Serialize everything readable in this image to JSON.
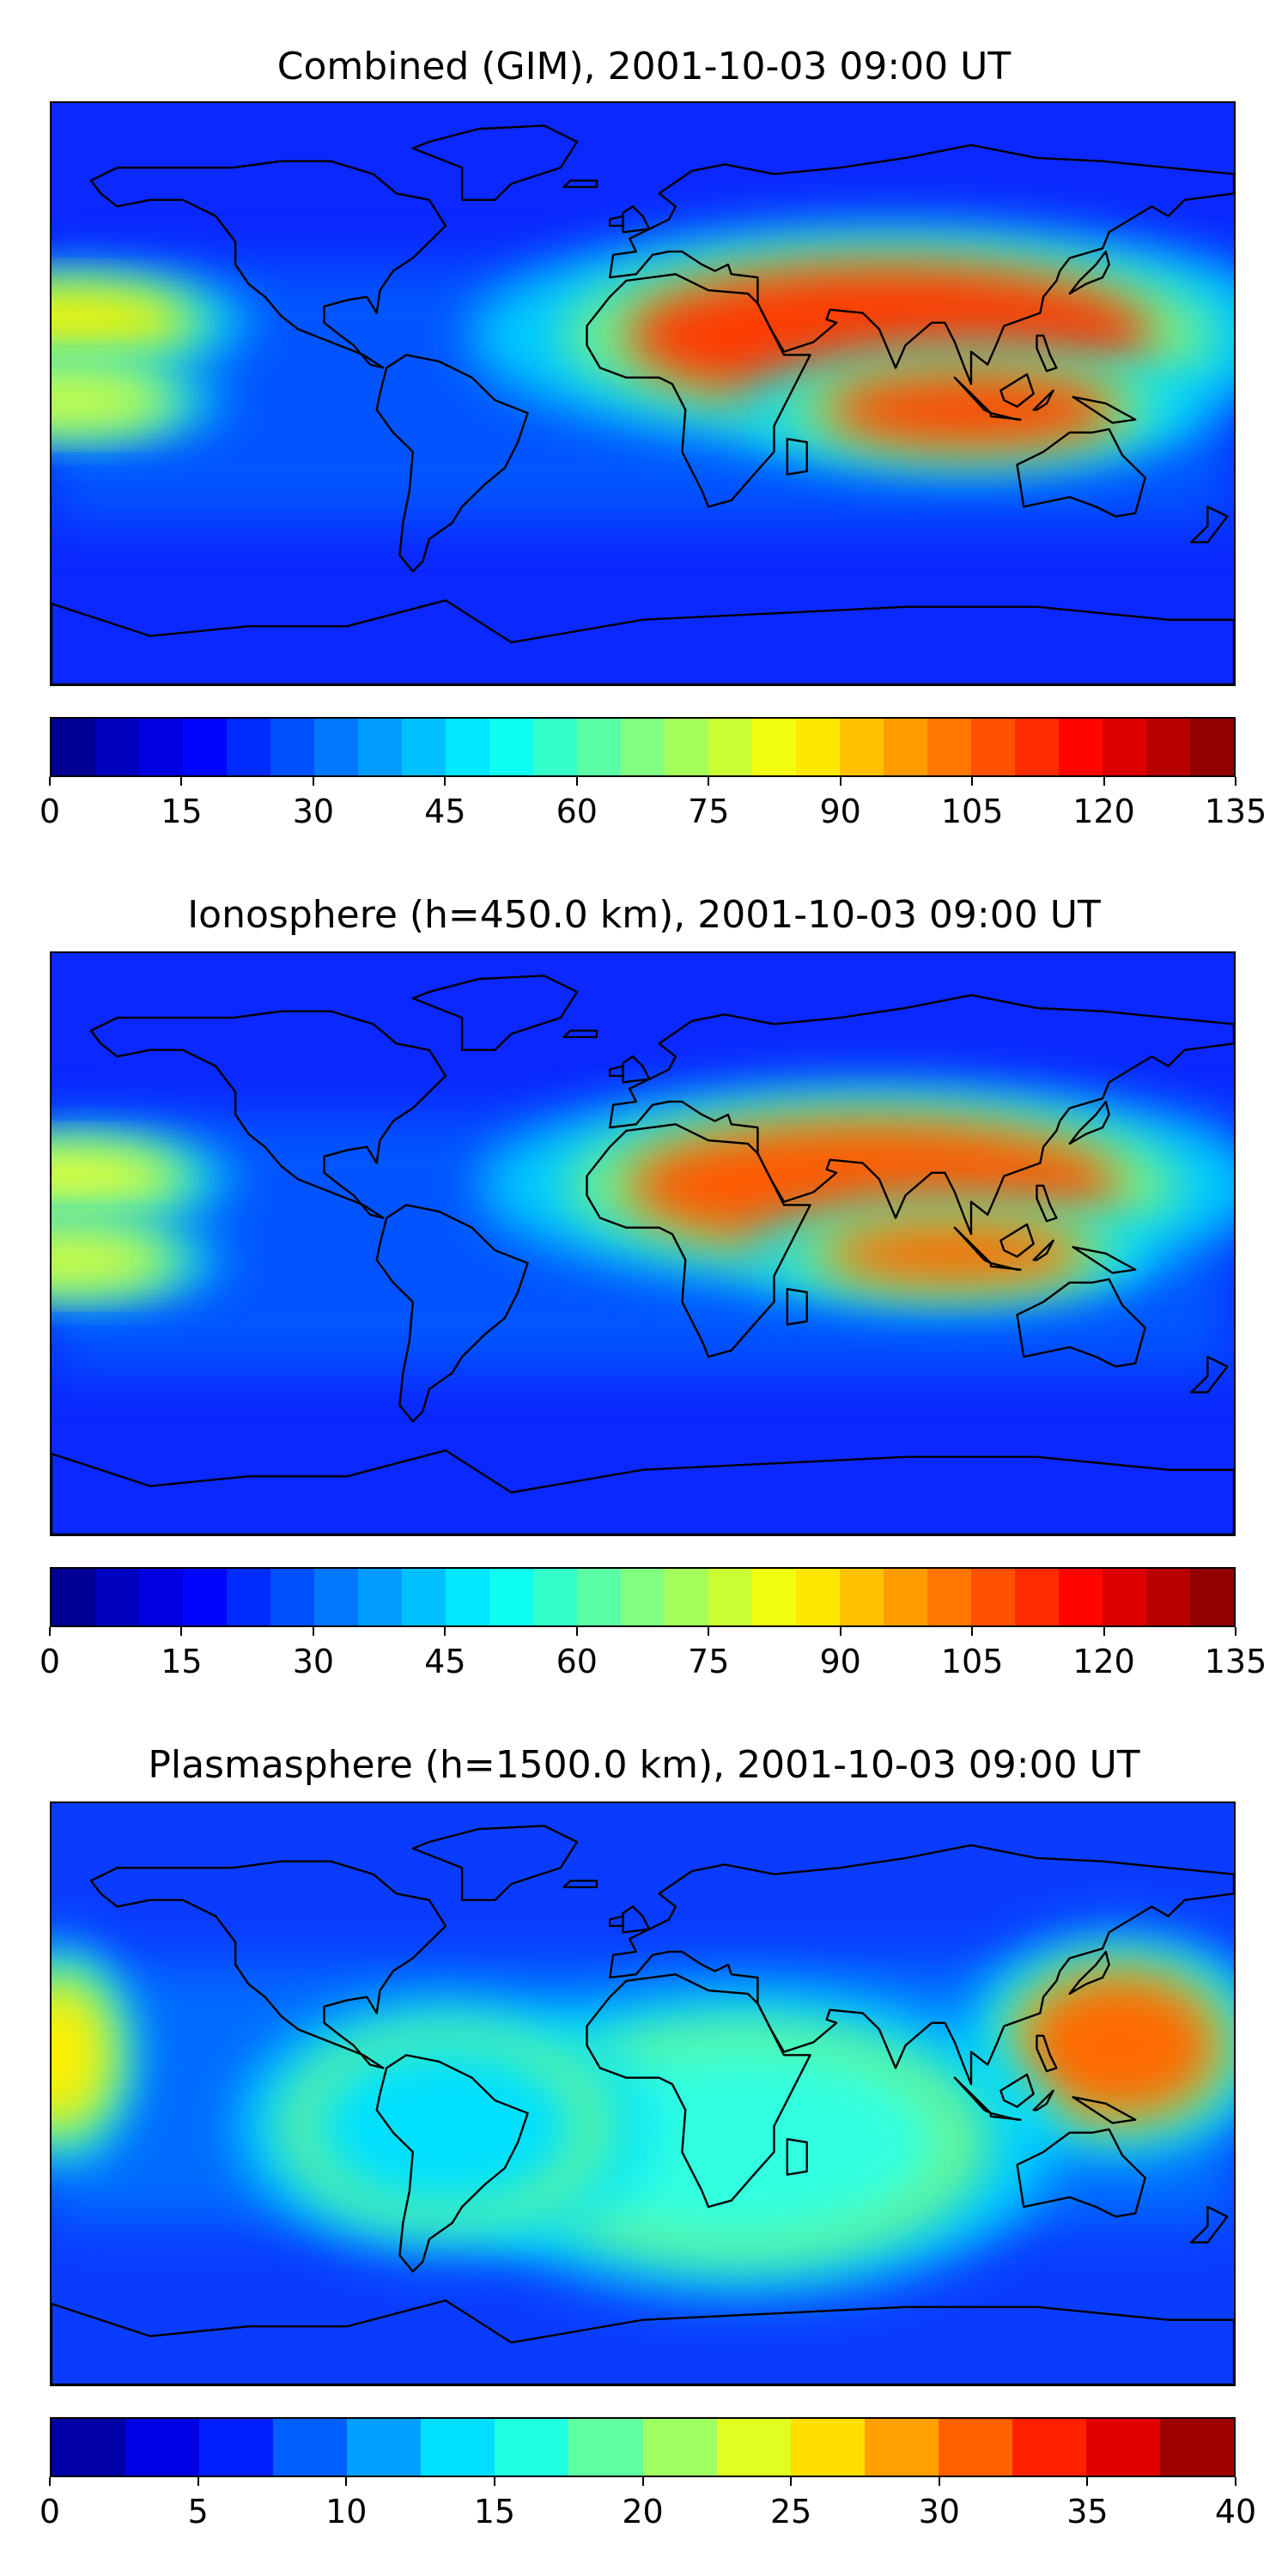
{
  "figure": {
    "panels": [
      {
        "title": "Combined (GIM), 2001-10-03 09:00 UT",
        "colorbar": {
          "ticks": [
            "0",
            "15",
            "30",
            "45",
            "60",
            "75",
            "90",
            "105",
            "120",
            "135"
          ],
          "range": [
            0,
            135
          ],
          "levels": 27
        },
        "blobs": [
          {
            "lon": 75,
            "lat": 18,
            "rx": 80,
            "ry": 22,
            "color": "#ff3b00"
          },
          {
            "lon": 100,
            "lat": -5,
            "rx": 45,
            "ry": 12,
            "color": "#ff4a00"
          },
          {
            "lon": -175,
            "lat": 22,
            "rx": 35,
            "ry": 10,
            "color": "#f6f200"
          },
          {
            "lon": -175,
            "lat": -2,
            "rx": 30,
            "ry": 8,
            "color": "#d8ff3a"
          }
        ]
      },
      {
        "title": "Ionosphere  (h=450.0 km), 2001-10-03 09:00 UT",
        "colorbar": {
          "ticks": [
            "0",
            "15",
            "30",
            "45",
            "60",
            "75",
            "90",
            "105",
            "120",
            "135"
          ],
          "range": [
            0,
            135
          ],
          "levels": 27
        },
        "blobs": [
          {
            "lon": 70,
            "lat": 18,
            "rx": 75,
            "ry": 20,
            "color": "#ff5a00"
          },
          {
            "lon": 95,
            "lat": -3,
            "rx": 40,
            "ry": 10,
            "color": "#ff6a00"
          },
          {
            "lon": -175,
            "lat": 20,
            "rx": 32,
            "ry": 9,
            "color": "#e8ff30"
          },
          {
            "lon": -175,
            "lat": -5,
            "rx": 30,
            "ry": 8,
            "color": "#e0ff34"
          }
        ]
      },
      {
        "title": "Plasmasphere (h=1500.0 km), 2001-10-03 09:00 UT",
        "colorbar": {
          "ticks": [
            "0",
            "5",
            "10",
            "15",
            "20",
            "25",
            "30",
            "35",
            "40"
          ],
          "range": [
            0,
            40
          ],
          "levels": 16
        },
        "blobs": [
          {
            "lon": 145,
            "lat": 15,
            "rx": 30,
            "ry": 22,
            "color": "#ff6a00"
          },
          {
            "lon": -178,
            "lat": 12,
            "rx": 15,
            "ry": 22,
            "color": "#fff000"
          },
          {
            "lon": 30,
            "lat": -15,
            "rx": 60,
            "ry": 30,
            "color": "#33ffe0"
          },
          {
            "lon": -60,
            "lat": -10,
            "rx": 40,
            "ry": 25,
            "color": "#00e0ff"
          }
        ]
      }
    ]
  },
  "colors": {
    "jet": [
      "#00007f",
      "#0000c8",
      "#0000ff",
      "#0040ff",
      "#0080ff",
      "#00bfff",
      "#00ffff",
      "#40ffbf",
      "#80ff80",
      "#bfff40",
      "#ffff00",
      "#ffbf00",
      "#ff8000",
      "#ff4000",
      "#ff0000",
      "#c00000",
      "#800000"
    ],
    "coastline": "#000000"
  }
}
